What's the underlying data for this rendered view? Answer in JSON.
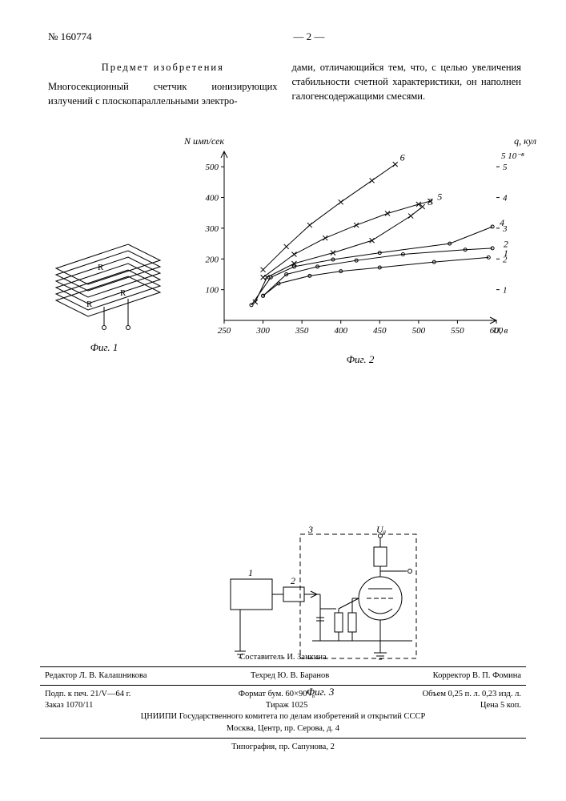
{
  "header": {
    "left": "№ 160774",
    "center": "— 2 —",
    "right": ""
  },
  "claim": {
    "title": "Предмет изобретения",
    "left": "Многосекционный счетчик ионизирующих излучений с плоскопараллельными электро-",
    "right": "дами, отличающийся тем, что, с целью увеличения стабильности счетной характеристики, он наполнен галогенсодержащими смесями."
  },
  "fig1": {
    "caption": "Фиг. 1",
    "labels": {
      "R": "R",
      "plus": "+",
      "minus": "—"
    }
  },
  "fig2": {
    "caption": "Фиг. 2",
    "ylabel_left": "N имп/сек",
    "ylabel_right": "q, кул",
    "right_exp": "5 10⁻⁸",
    "xlabel": "U, в",
    "xticks": [
      250,
      300,
      350,
      400,
      450,
      500,
      550,
      600
    ],
    "yticks_left": [
      100,
      200,
      300,
      400,
      500
    ],
    "yticks_right": [
      1,
      2,
      3,
      4,
      5
    ],
    "xlim": [
      250,
      600
    ],
    "ylim": [
      0,
      550
    ],
    "line_color": "#000",
    "axis_color": "#000",
    "series": [
      {
        "id": "1",
        "pts": [
          [
            300,
            80
          ],
          [
            320,
            120
          ],
          [
            360,
            145
          ],
          [
            400,
            160
          ],
          [
            450,
            172
          ],
          [
            520,
            190
          ],
          [
            590,
            205
          ]
        ]
      },
      {
        "id": "2",
        "pts": [
          [
            300,
            80
          ],
          [
            330,
            150
          ],
          [
            370,
            175
          ],
          [
            420,
            195
          ],
          [
            480,
            215
          ],
          [
            560,
            230
          ],
          [
            595,
            235
          ]
        ]
      },
      {
        "id": "3",
        "marker": "x",
        "pts": [
          [
            290,
            60
          ],
          [
            305,
            140
          ],
          [
            340,
            185
          ],
          [
            390,
            220
          ],
          [
            440,
            260
          ],
          [
            490,
            340
          ],
          [
            505,
            370
          ]
        ]
      },
      {
        "id": "4",
        "pts": [
          [
            285,
            50
          ],
          [
            310,
            140
          ],
          [
            340,
            175
          ],
          [
            390,
            198
          ],
          [
            450,
            220
          ],
          [
            540,
            250
          ],
          [
            595,
            305
          ]
        ]
      },
      {
        "id": "5",
        "marker": "x",
        "pts": [
          [
            300,
            140
          ],
          [
            340,
            215
          ],
          [
            380,
            268
          ],
          [
            420,
            310
          ],
          [
            460,
            348
          ],
          [
            500,
            378
          ],
          [
            515,
            388
          ]
        ]
      },
      {
        "id": "6",
        "marker": "x",
        "pts": [
          [
            300,
            165
          ],
          [
            330,
            240
          ],
          [
            360,
            310
          ],
          [
            400,
            385
          ],
          [
            440,
            455
          ],
          [
            470,
            508
          ]
        ]
      }
    ],
    "series_endlabels": [
      {
        "id": "6",
        "x": 472,
        "y": 520
      },
      {
        "id": "5",
        "x": 520,
        "y": 392
      },
      {
        "id": "4",
        "x": 600,
        "y": 308
      },
      {
        "id": "3",
        "x": 508,
        "y": 375
      },
      {
        "id": "2",
        "x": 605,
        "y": 238
      },
      {
        "id": "1",
        "x": 605,
        "y": 208
      }
    ]
  },
  "fig3": {
    "caption": "Фиг. 3",
    "labels": {
      "1": "1",
      "2": "2",
      "3": "3",
      "Ua": "Uₐ"
    }
  },
  "imprint": {
    "compiler": "Составитель И. Заикина",
    "row1": {
      "editor": "Редактор Л. В. Калашникова",
      "techred": "Техред Ю. В. Баранов",
      "corrector": "Корректор В. П. Фомина"
    },
    "row2": {
      "a": "Подп. к печ. 21/V—64 г.",
      "b": "Формат бум. 60×90¹/₈",
      "c": "Объем 0,25 п. л. 0,23 изд. л."
    },
    "row3": {
      "a": "Заказ 1070/11",
      "b": "Тираж 1025",
      "c": "Цена 5 коп."
    },
    "org": "ЦНИИПИ Государственного комитета по делам изобретений и открытий СССР",
    "addr": "Москва, Центр, пр. Серова, д. 4",
    "typ": "Типография, пр. Сапунова, 2"
  }
}
